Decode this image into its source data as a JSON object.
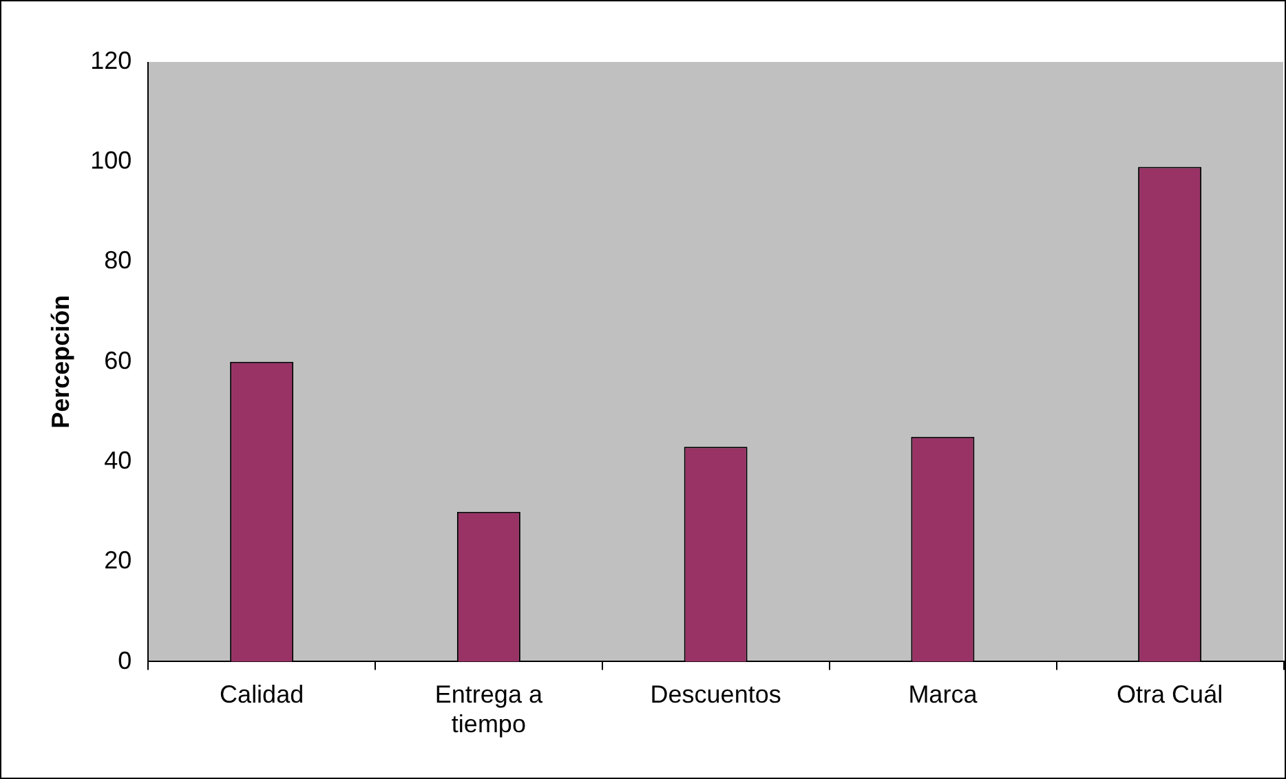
{
  "chart_data": {
    "type": "bar",
    "ylabel": "Percepción",
    "categories": [
      "Calidad",
      "Entrega a tiempo",
      "Descuentos",
      "Marca",
      "Otra Cuál"
    ],
    "values": [
      60,
      30,
      43,
      45,
      99
    ],
    "color": "#993366",
    "ylim": [
      0,
      120
    ],
    "yticks": [
      0,
      20,
      40,
      60,
      80,
      100,
      120
    ],
    "grid": false,
    "legend": false
  }
}
